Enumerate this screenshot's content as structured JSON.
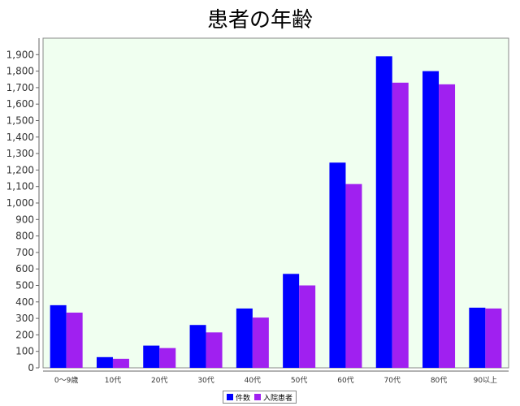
{
  "chart_data": {
    "type": "bar",
    "title": "患者の年齢",
    "categories": [
      "0〜9歳",
      "10代",
      "20代",
      "30代",
      "40代",
      "50代",
      "60代",
      "70代",
      "80代",
      "90以上"
    ],
    "series": [
      {
        "name": "件数",
        "color": "#0000ff",
        "values": [
          380,
          65,
          135,
          260,
          360,
          570,
          1245,
          1890,
          1800,
          365
        ]
      },
      {
        "name": "入院患者",
        "color": "#a020f0",
        "values": [
          335,
          55,
          120,
          215,
          305,
          500,
          1115,
          1730,
          1720,
          360
        ]
      }
    ],
    "xlabel": "",
    "ylabel": "",
    "ylim": [
      0,
      2000
    ],
    "yticks": [
      0,
      100,
      200,
      300,
      400,
      500,
      600,
      700,
      800,
      900,
      1000,
      1100,
      1200,
      1300,
      1400,
      1500,
      1600,
      1700,
      1800,
      1900
    ],
    "ytick_labels": [
      "0",
      "100",
      "200",
      "300",
      "400",
      "500",
      "600",
      "700",
      "800",
      "900",
      "1,000",
      "1,100",
      "1,200",
      "1,300",
      "1,400",
      "1,500",
      "1,600",
      "1,700",
      "1,800",
      "1,900"
    ],
    "grid": false,
    "plot_background": "#f0fff0",
    "legend_position": "bottom-center"
  }
}
